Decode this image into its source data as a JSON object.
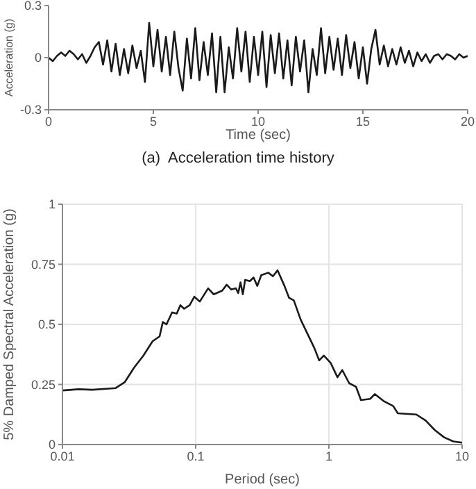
{
  "chart_data": [
    {
      "type": "line",
      "xlabel": "Time (sec)",
      "ylabel": "Acceleration (g)",
      "annotations": [
        "(a)  Acceleration time history"
      ],
      "xlim": [
        0,
        20
      ],
      "xticks": [
        0,
        5,
        10,
        15,
        20
      ],
      "ylim": [
        -0.3,
        0.3
      ],
      "yticks": [
        -0.3,
        0,
        0.3
      ],
      "grid": false,
      "marker": "none",
      "line_style": "solid",
      "x": [
        0,
        0.2,
        0.4,
        0.6,
        0.8,
        1,
        1.2,
        1.4,
        1.6,
        1.8,
        2,
        2.2,
        2.4,
        2.6,
        2.8,
        3,
        3.2,
        3.4,
        3.6,
        3.8,
        4,
        4.2,
        4.4,
        4.6,
        4.8,
        5,
        5.2,
        5.4,
        5.6,
        5.8,
        6,
        6.2,
        6.4,
        6.6,
        6.8,
        7,
        7.2,
        7.4,
        7.6,
        7.8,
        8,
        8.2,
        8.4,
        8.6,
        8.8,
        9,
        9.2,
        9.4,
        9.6,
        9.8,
        10,
        10.2,
        10.4,
        10.6,
        10.8,
        11,
        11.2,
        11.4,
        11.6,
        11.8,
        12,
        12.2,
        12.4,
        12.6,
        12.8,
        13,
        13.2,
        13.4,
        13.6,
        13.8,
        14,
        14.2,
        14.4,
        14.6,
        14.8,
        15,
        15.2,
        15.4,
        15.6,
        15.8,
        16,
        16.2,
        16.4,
        16.6,
        16.8,
        17,
        17.2,
        17.4,
        17.6,
        17.8,
        18,
        18.2,
        18.4,
        18.6,
        18.8,
        19,
        19.2,
        19.4,
        19.6,
        19.8,
        20
      ],
      "series": [
        {
          "color": "#1a1a1a",
          "values": [
            0,
            -0.02,
            0.01,
            0.03,
            0.01,
            0.04,
            0.02,
            -0.01,
            0.02,
            -0.03,
            0.01,
            0.06,
            0.09,
            -0.04,
            0.1,
            -0.08,
            0.08,
            -0.1,
            0.05,
            -0.09,
            0.07,
            -0.06,
            0.04,
            -0.14,
            0.2,
            -0.05,
            0.16,
            -0.08,
            0.12,
            -0.1,
            0.15,
            -0.06,
            -0.19,
            0.11,
            -0.12,
            0.17,
            -0.13,
            0.09,
            -0.1,
            0.14,
            -0.2,
            0.12,
            -0.2,
            0.06,
            -0.12,
            0.17,
            -0.08,
            0.15,
            -0.14,
            0.12,
            -0.1,
            0.15,
            -0.17,
            0.13,
            -0.09,
            0.14,
            -0.12,
            0.1,
            -0.16,
            0.12,
            -0.08,
            0.1,
            -0.2,
            0.05,
            -0.1,
            0.17,
            -0.09,
            0.12,
            -0.07,
            0.11,
            -0.1,
            0.13,
            -0.06,
            0.09,
            -0.12,
            0.06,
            -0.15,
            0.05,
            0.16,
            -0.04,
            0.07,
            -0.05,
            0.05,
            -0.04,
            0.06,
            -0.03,
            0.04,
            -0.05,
            0.03,
            -0.02,
            0.02,
            -0.03,
            0.01,
            0.02,
            -0.01,
            0.02,
            0.01,
            -0.01,
            0.02,
            0,
            0.01
          ]
        }
      ]
    },
    {
      "type": "line",
      "xlabel": "Period (sec)",
      "ylabel": "5% Damped Spectral Acceleration (g)",
      "log": "x",
      "xlim": [
        0.01,
        10
      ],
      "xticks": [
        0.01,
        0.1,
        1,
        10
      ],
      "ylim": [
        0,
        1
      ],
      "yticks": [
        0,
        0.25,
        0.5,
        0.75,
        1
      ],
      "grid": true,
      "marker": "none",
      "line_style": "solid",
      "x": [
        0.01,
        0.0132,
        0.0168,
        0.0251,
        0.0294,
        0.0345,
        0.0405,
        0.0475,
        0.0536,
        0.0567,
        0.0604,
        0.0665,
        0.0721,
        0.0768,
        0.0819,
        0.0901,
        0.0977,
        0.1074,
        0.124,
        0.1366,
        0.158,
        0.171,
        0.185,
        0.2005,
        0.2086,
        0.217,
        0.226,
        0.235,
        0.255,
        0.272,
        0.29,
        0.311,
        0.351,
        0.38,
        0.412,
        0.464,
        0.503,
        0.545,
        0.614,
        0.692,
        0.78,
        0.845,
        0.916,
        1.03,
        1.16,
        1.26,
        1.42,
        1.6,
        1.74,
        2.04,
        2.21,
        2.59,
        3.04,
        3.29,
        4.53,
        5.32,
        6.24,
        7.33,
        8.59,
        10
      ],
      "series": [
        {
          "color": "#1a1a1a",
          "values": [
            0.225,
            0.23,
            0.228,
            0.235,
            0.26,
            0.32,
            0.37,
            0.43,
            0.45,
            0.51,
            0.5,
            0.55,
            0.545,
            0.58,
            0.565,
            0.58,
            0.615,
            0.595,
            0.65,
            0.625,
            0.64,
            0.665,
            0.645,
            0.65,
            0.63,
            0.675,
            0.625,
            0.685,
            0.68,
            0.695,
            0.66,
            0.705,
            0.715,
            0.7,
            0.725,
            0.66,
            0.61,
            0.6,
            0.52,
            0.46,
            0.4,
            0.35,
            0.37,
            0.34,
            0.28,
            0.31,
            0.255,
            0.24,
            0.185,
            0.19,
            0.21,
            0.18,
            0.16,
            0.13,
            0.125,
            0.1,
            0.06,
            0.03,
            0.013,
            0.008
          ]
        }
      ]
    }
  ]
}
